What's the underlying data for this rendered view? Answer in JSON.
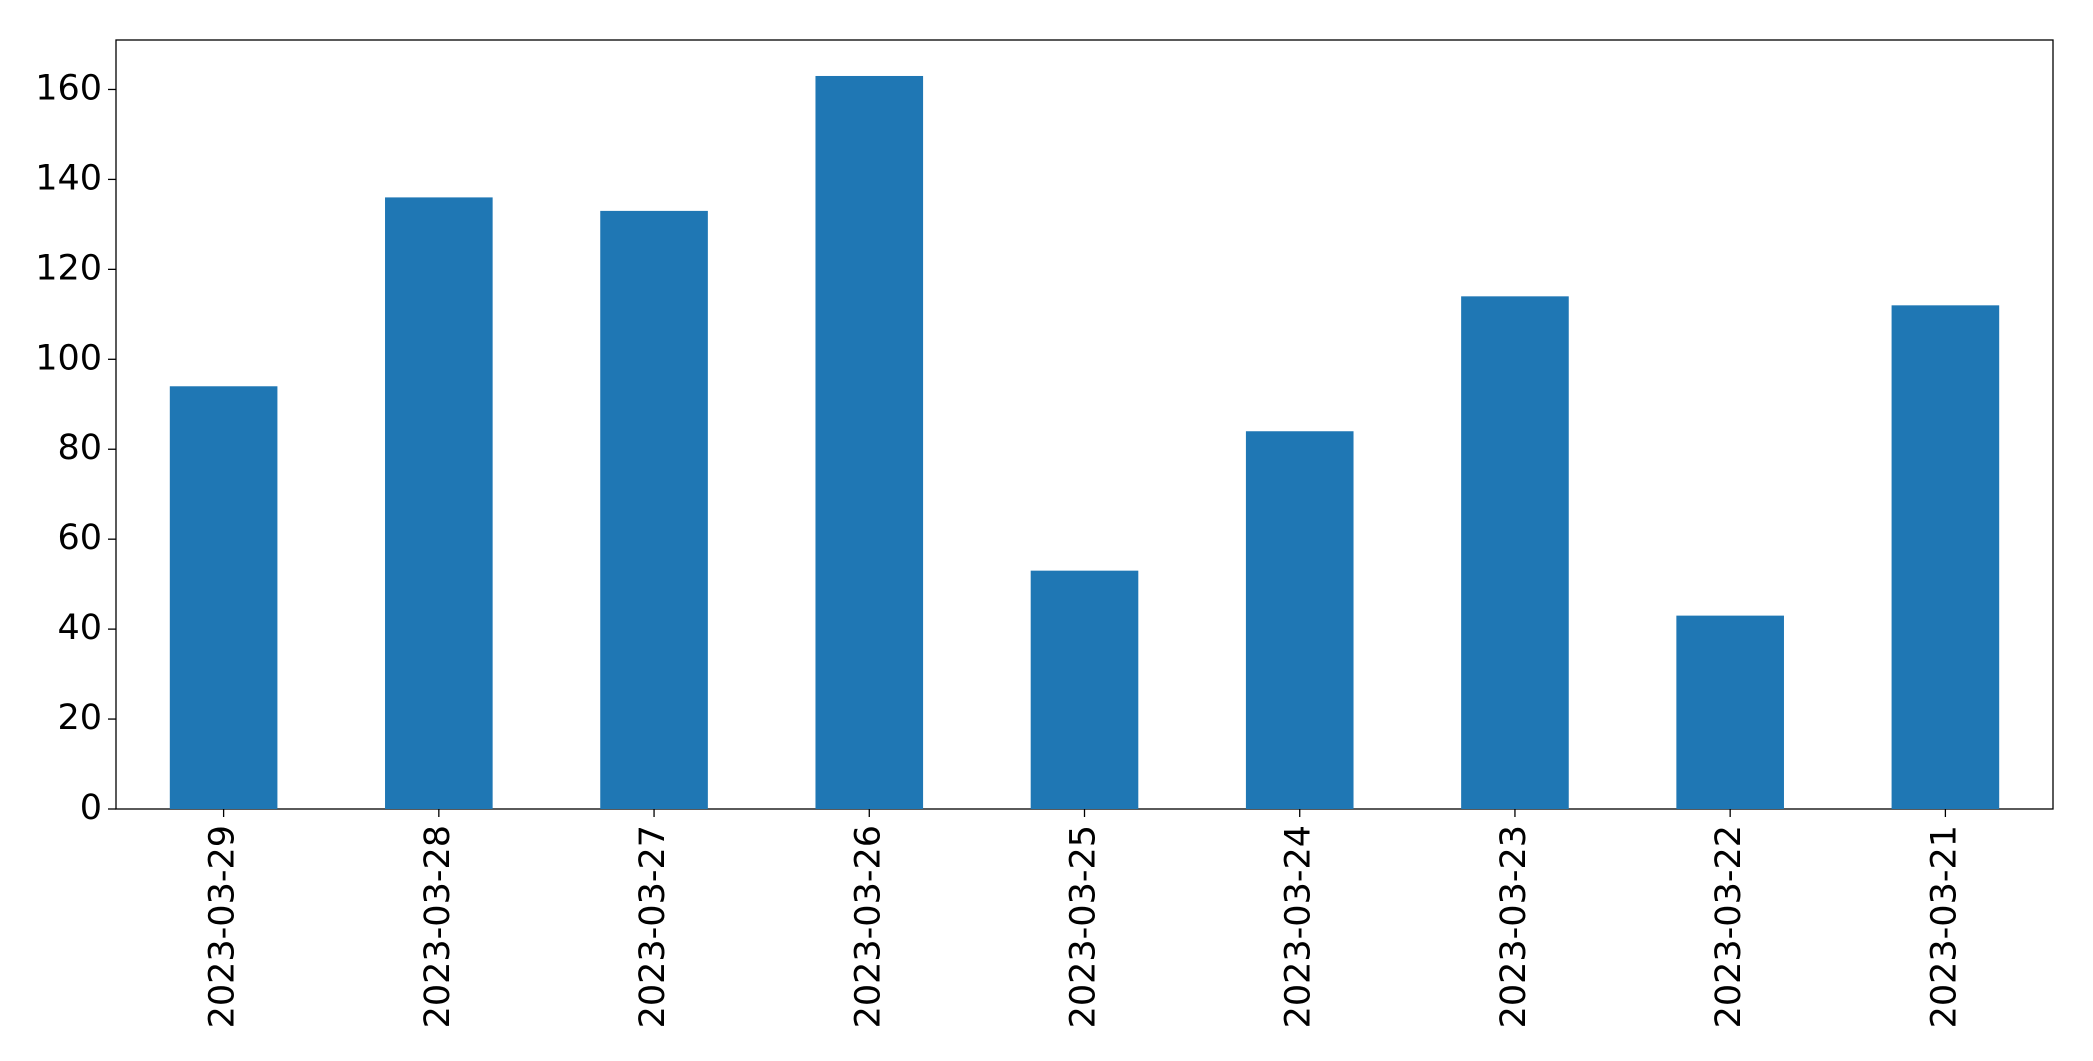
{
  "chart_data": {
    "type": "bar",
    "categories": [
      "2023-03-29",
      "2023-03-28",
      "2023-03-27",
      "2023-03-26",
      "2023-03-25",
      "2023-03-24",
      "2023-03-23",
      "2023-03-22",
      "2023-03-21"
    ],
    "values": [
      94,
      136,
      133,
      163,
      53,
      84,
      114,
      43,
      112
    ],
    "color": "#1f77b4",
    "ylim": [
      0,
      171
    ],
    "yticks": [
      0,
      20,
      40,
      60,
      80,
      100,
      120,
      140,
      160
    ],
    "grid": false
  }
}
